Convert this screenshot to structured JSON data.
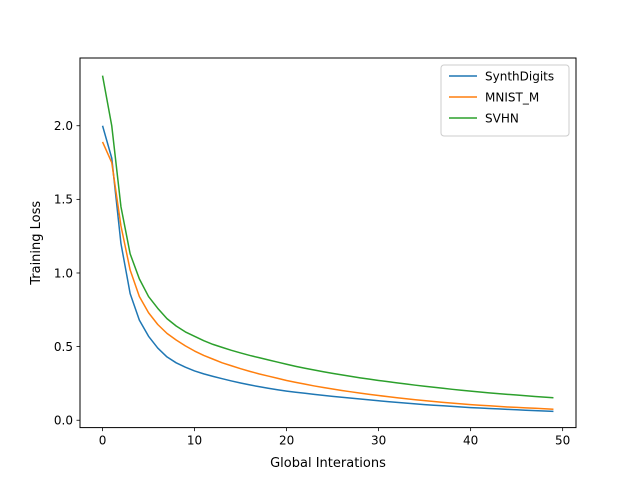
{
  "chart_data": {
    "type": "line",
    "title": "",
    "xlabel": "Global Interations",
    "ylabel": "Training Loss",
    "xlim": [
      -2.45,
      51.45
    ],
    "ylim": [
      -0.05,
      2.46
    ],
    "xticks": [
      0,
      10,
      20,
      30,
      40,
      50
    ],
    "xtick_labels": [
      "0",
      "10",
      "20",
      "30",
      "40",
      "50"
    ],
    "yticks": [
      0.0,
      0.5,
      1.0,
      1.5,
      2.0
    ],
    "ytick_labels": [
      "0.0",
      "0.5",
      "1.0",
      "1.5",
      "2.0"
    ],
    "grid": false,
    "legend_position": "top-right",
    "x": [
      0,
      1,
      2,
      3,
      4,
      5,
      6,
      7,
      8,
      9,
      10,
      11,
      12,
      13,
      14,
      15,
      16,
      17,
      18,
      19,
      20,
      21,
      22,
      23,
      24,
      25,
      26,
      27,
      28,
      29,
      30,
      31,
      32,
      33,
      34,
      35,
      36,
      37,
      38,
      39,
      40,
      41,
      42,
      43,
      44,
      45,
      46,
      47,
      48,
      49
    ],
    "series": [
      {
        "name": "SynthDigits",
        "color": "#1f77b4",
        "values": [
          2.0,
          1.78,
          1.2,
          0.86,
          0.68,
          0.57,
          0.49,
          0.43,
          0.39,
          0.36,
          0.335,
          0.315,
          0.298,
          0.282,
          0.267,
          0.253,
          0.24,
          0.228,
          0.217,
          0.207,
          0.198,
          0.19,
          0.183,
          0.176,
          0.169,
          0.162,
          0.156,
          0.15,
          0.144,
          0.138,
          0.132,
          0.126,
          0.121,
          0.116,
          0.111,
          0.106,
          0.102,
          0.098,
          0.094,
          0.09,
          0.086,
          0.083,
          0.08,
          0.077,
          0.074,
          0.071,
          0.068,
          0.065,
          0.063,
          0.06
        ]
      },
      {
        "name": "MNIST_M",
        "color": "#ff7f0e",
        "values": [
          1.89,
          1.75,
          1.32,
          1.02,
          0.84,
          0.73,
          0.65,
          0.59,
          0.545,
          0.505,
          0.47,
          0.44,
          0.415,
          0.39,
          0.37,
          0.35,
          0.332,
          0.315,
          0.3,
          0.285,
          0.27,
          0.257,
          0.245,
          0.233,
          0.222,
          0.212,
          0.202,
          0.193,
          0.184,
          0.176,
          0.168,
          0.16,
          0.153,
          0.146,
          0.139,
          0.133,
          0.127,
          0.121,
          0.116,
          0.111,
          0.106,
          0.102,
          0.098,
          0.094,
          0.09,
          0.087,
          0.084,
          0.081,
          0.078,
          0.075
        ]
      },
      {
        "name": "SVHN",
        "color": "#2ca02c",
        "values": [
          2.34,
          2.0,
          1.45,
          1.13,
          0.96,
          0.84,
          0.76,
          0.69,
          0.64,
          0.6,
          0.57,
          0.54,
          0.515,
          0.495,
          0.475,
          0.457,
          0.44,
          0.425,
          0.41,
          0.395,
          0.38,
          0.366,
          0.353,
          0.341,
          0.329,
          0.318,
          0.308,
          0.298,
          0.288,
          0.279,
          0.27,
          0.262,
          0.254,
          0.246,
          0.238,
          0.231,
          0.224,
          0.217,
          0.21,
          0.204,
          0.198,
          0.192,
          0.186,
          0.181,
          0.176,
          0.171,
          0.166,
          0.161,
          0.157,
          0.153
        ]
      }
    ]
  }
}
